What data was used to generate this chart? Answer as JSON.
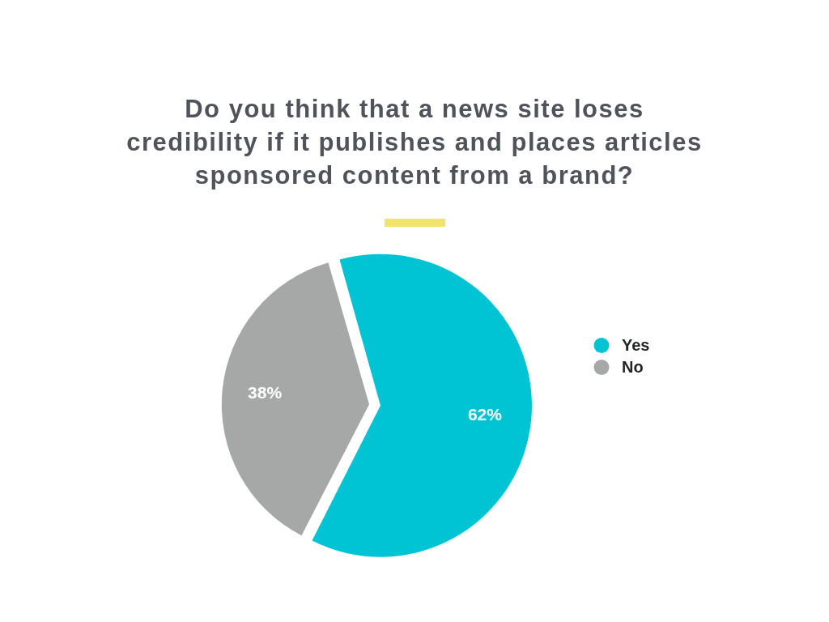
{
  "chart_data": {
    "type": "pie",
    "title": "Do you think that a news site loses credibility if it publishes and places articles sponsored content from a brand?",
    "categories": [
      "Yes",
      "No"
    ],
    "values": [
      62,
      38
    ],
    "colors": [
      "#00c4d3",
      "#a6a8a7"
    ],
    "value_labels": [
      "62%",
      "38%"
    ],
    "legend": "right"
  }
}
